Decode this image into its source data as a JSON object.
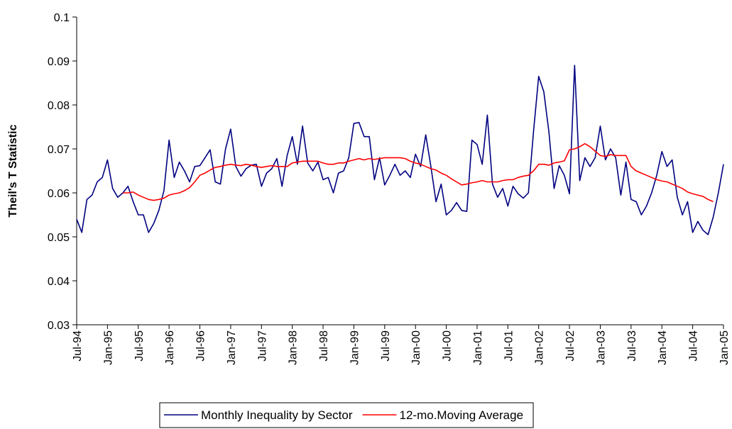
{
  "chart_data": {
    "type": "line",
    "ylabel": "Theil's T Statistic",
    "categories": [
      "Jul-94",
      null,
      null,
      null,
      null,
      null,
      "Jan-95",
      null,
      null,
      null,
      null,
      null,
      "Jul-95",
      null,
      null,
      null,
      null,
      null,
      "Jan-96",
      null,
      null,
      null,
      null,
      null,
      "Jul-96",
      null,
      null,
      null,
      null,
      null,
      "Jan-97",
      null,
      null,
      null,
      null,
      null,
      "Jul-97",
      null,
      null,
      null,
      null,
      null,
      "Jan-98",
      null,
      null,
      null,
      null,
      null,
      "Jul-98",
      null,
      null,
      null,
      null,
      null,
      "Jan-99",
      null,
      null,
      null,
      null,
      null,
      "Jul-99",
      null,
      null,
      null,
      null,
      null,
      "Jan-00",
      null,
      null,
      null,
      null,
      null,
      "Jul-00",
      null,
      null,
      null,
      null,
      null,
      "Jan-01",
      null,
      null,
      null,
      null,
      null,
      "Jul-01",
      null,
      null,
      null,
      null,
      null,
      "Jan-02",
      null,
      null,
      null,
      null,
      null,
      "Jul-02",
      null,
      null,
      null,
      null,
      null,
      "Jan-03",
      null,
      null,
      null,
      null,
      null,
      "Jul-03",
      null,
      null,
      null,
      null,
      null,
      "Jan-04",
      null,
      null,
      null,
      null,
      null,
      "Jul-04",
      null,
      null,
      null,
      null,
      null,
      "Jan-05"
    ],
    "series": [
      {
        "name": "Monthly Inequality by Sector",
        "color": "#000080",
        "values": [
          0.054,
          0.051,
          0.0585,
          0.0595,
          0.0625,
          0.0635,
          0.0675,
          0.061,
          0.059,
          0.06,
          0.0615,
          0.058,
          0.055,
          0.055,
          0.051,
          0.053,
          0.056,
          0.0605,
          0.072,
          0.0635,
          0.067,
          0.065,
          0.0625,
          0.066,
          0.0662,
          0.068,
          0.0698,
          0.0625,
          0.062,
          0.07,
          0.0745,
          0.066,
          0.0638,
          0.0655,
          0.0663,
          0.0665,
          0.0615,
          0.0645,
          0.0655,
          0.0678,
          0.0615,
          0.0685,
          0.0728,
          0.0665,
          0.0752,
          0.0668,
          0.065,
          0.067,
          0.063,
          0.0635,
          0.06,
          0.0645,
          0.065,
          0.068,
          0.0758,
          0.076,
          0.0728,
          0.0728,
          0.063,
          0.068,
          0.0618,
          0.064,
          0.0665,
          0.064,
          0.065,
          0.0635,
          0.0688,
          0.066,
          0.0732,
          0.066,
          0.058,
          0.062,
          0.055,
          0.056,
          0.0578,
          0.056,
          0.0558,
          0.072,
          0.071,
          0.0665,
          0.0777,
          0.062,
          0.059,
          0.061,
          0.057,
          0.0615,
          0.0598,
          0.0588,
          0.06,
          0.074,
          0.0865,
          0.083,
          0.0738,
          0.061,
          0.0662,
          0.064,
          0.0598,
          0.089,
          0.0628,
          0.068,
          0.066,
          0.068,
          0.0752,
          0.0675,
          0.07,
          0.068,
          0.0595,
          0.067,
          0.0585,
          0.058,
          0.055,
          0.057,
          0.06,
          0.064,
          0.0694,
          0.066,
          0.0675,
          0.059,
          0.055,
          0.058,
          0.051,
          0.0535,
          0.0515,
          0.0505,
          0.0545,
          0.06,
          0.0665
        ]
      },
      {
        "name": "12-mo.Moving Average",
        "color": "#ff0000",
        "values": [
          null,
          null,
          null,
          null,
          null,
          null,
          null,
          null,
          null,
          0.06,
          0.06,
          0.0602,
          0.0595,
          0.059,
          0.0585,
          0.0583,
          0.0585,
          0.0588,
          0.0595,
          0.0598,
          0.06,
          0.0605,
          0.0612,
          0.0625,
          0.064,
          0.0645,
          0.0652,
          0.0658,
          0.066,
          0.0663,
          0.0665,
          0.0663,
          0.0662,
          0.0665,
          0.0663,
          0.066,
          0.0658,
          0.066,
          0.0662,
          0.066,
          0.066,
          0.066,
          0.0668,
          0.067,
          0.0672,
          0.0672,
          0.0672,
          0.0672,
          0.0668,
          0.0665,
          0.0665,
          0.0668,
          0.0668,
          0.0672,
          0.0675,
          0.0678,
          0.0675,
          0.0678,
          0.0676,
          0.0678,
          0.068,
          0.068,
          0.068,
          0.068,
          0.0678,
          0.0672,
          0.0668,
          0.0665,
          0.066,
          0.0655,
          0.0652,
          0.0645,
          0.064,
          0.0632,
          0.0625,
          0.0618,
          0.062,
          0.0623,
          0.0625,
          0.0628,
          0.0625,
          0.0625,
          0.0625,
          0.0628,
          0.063,
          0.063,
          0.0635,
          0.0638,
          0.064,
          0.065,
          0.0665,
          0.0665,
          0.0663,
          0.0668,
          0.067,
          0.0673,
          0.0698,
          0.07,
          0.0705,
          0.0712,
          0.0705,
          0.0695,
          0.0685,
          0.0683,
          0.0687,
          0.0685,
          0.0685,
          0.0685,
          0.066,
          0.065,
          0.0645,
          0.064,
          0.0635,
          0.063,
          0.0627,
          0.0625,
          0.062,
          0.0615,
          0.061,
          0.0602,
          0.0598,
          0.0595,
          0.0592,
          0.0585,
          0.058,
          null,
          null
        ]
      }
    ],
    "ylim": [
      0.03,
      0.1
    ],
    "yticks": [
      0.03,
      0.04,
      0.05,
      0.06,
      0.07,
      0.08,
      0.09,
      0.1
    ],
    "grid": false,
    "legend": "bottom"
  }
}
